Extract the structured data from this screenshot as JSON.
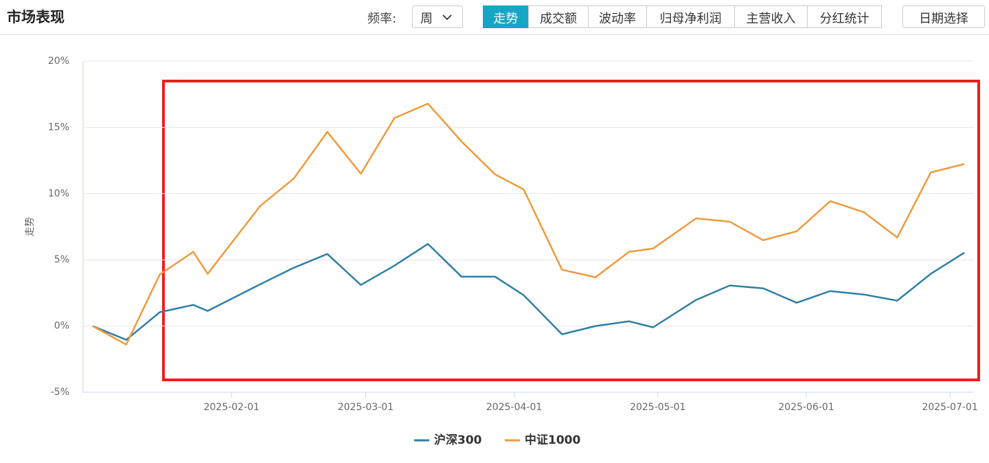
{
  "header": {
    "title": "市场表现",
    "frequency_label": "频率:",
    "frequency_value": "周",
    "tabs": [
      "走势",
      "成交额",
      "波动率",
      "归母净利润",
      "主营收入",
      "分红统计"
    ],
    "active_tab": 0,
    "date_button": "日期选择"
  },
  "chart_data": {
    "type": "line",
    "y_label": "走势",
    "x": [
      "2025-01-03",
      "2025-01-10",
      "2025-01-17",
      "2025-01-24",
      "2025-01-27",
      "2025-02-07",
      "2025-02-14",
      "2025-02-21",
      "2025-02-28",
      "2025-03-07",
      "2025-03-14",
      "2025-03-21",
      "2025-03-28",
      "2025-04-03",
      "2025-04-11",
      "2025-04-18",
      "2025-04-25",
      "2025-04-30",
      "2025-05-09",
      "2025-05-16",
      "2025-05-23",
      "2025-05-30",
      "2025-06-06",
      "2025-06-13",
      "2025-06-20",
      "2025-06-27",
      "2025-07-04"
    ],
    "series": [
      {
        "name": "沪深300",
        "color": "#2f7ea5",
        "values": [
          0,
          -1.04,
          1.04,
          1.6,
          1.14,
          3.16,
          4.4,
          5.44,
          3.1,
          4.56,
          6.2,
          3.73,
          3.73,
          2.33,
          -0.62,
          0,
          0.36,
          -0.1,
          1.97,
          3.06,
          2.85,
          1.76,
          2.64,
          2.38,
          1.92,
          3.94,
          5.54
        ]
      },
      {
        "name": "中证1000",
        "color": "#ee9a3b",
        "values": [
          0,
          -1.4,
          3.89,
          5.6,
          3.94,
          9.07,
          11.14,
          14.66,
          11.5,
          15.7,
          16.79,
          13.94,
          11.45,
          10.31,
          4.25,
          3.68,
          5.6,
          5.85,
          8.13,
          7.88,
          6.48,
          7.15,
          9.43,
          8.6,
          6.68,
          11.6,
          12.23
        ]
      }
    ],
    "xlim": [
      "2025-01-01",
      "2025-07-06"
    ],
    "xticks": [
      "2025-02-01",
      "2025-03-01",
      "2025-04-01",
      "2025-05-01",
      "2025-06-01",
      "2025-07-01"
    ],
    "ylim": [
      -5,
      20
    ],
    "yticks": [
      {
        "value": -5,
        "label": "-5%"
      },
      {
        "value": 0,
        "label": "0%"
      },
      {
        "value": 5,
        "label": "5%"
      },
      {
        "value": 10,
        "label": "10%"
      },
      {
        "value": 15,
        "label": "15%"
      },
      {
        "value": 20,
        "label": "20%"
      }
    ],
    "grid": true,
    "legend": "bottom"
  }
}
